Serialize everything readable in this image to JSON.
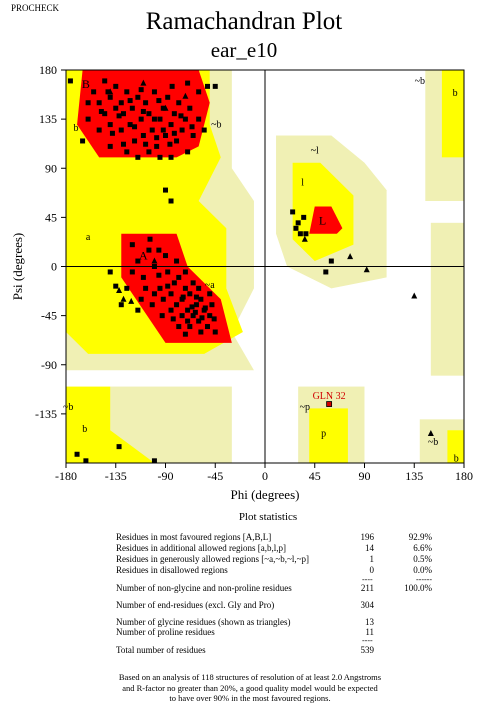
{
  "program": "PROCHECK",
  "title": "Ramachandran Plot",
  "subtitle": "ear_e10",
  "chart_data": {
    "type": "scatter",
    "xlabel": "Phi (degrees)",
    "ylabel": "Psi (degrees)",
    "xlim": [
      -180,
      180
    ],
    "ylim": [
      -180,
      180
    ],
    "xticks": [
      -180,
      -135,
      -90,
      -45,
      0,
      45,
      90,
      135,
      180
    ],
    "yticks": [
      180,
      135,
      90,
      45,
      0,
      -45,
      -90,
      -135
    ],
    "region_labels": [
      {
        "text": "B",
        "phi": -162,
        "psi": 167
      },
      {
        "text": "b",
        "phi": -171,
        "psi": 128
      },
      {
        "text": "~b",
        "phi": -44,
        "psi": 131
      },
      {
        "text": "~b",
        "phi": 140,
        "psi": 171
      },
      {
        "text": "b",
        "phi": 172,
        "psi": 160
      },
      {
        "text": "~l",
        "phi": 45,
        "psi": 107
      },
      {
        "text": "l",
        "phi": 34,
        "psi": 78
      },
      {
        "text": "L",
        "phi": 52,
        "psi": 42
      },
      {
        "text": "a",
        "phi": -160,
        "psi": 28
      },
      {
        "text": "A",
        "phi": -110,
        "psi": 10
      },
      {
        "text": "~a",
        "phi": -50,
        "psi": -16
      },
      {
        "text": "~b",
        "phi": -178,
        "psi": -128
      },
      {
        "text": "b",
        "phi": -163,
        "psi": -148
      },
      {
        "text": "~p",
        "phi": 36,
        "psi": -128
      },
      {
        "text": "p",
        "phi": 53,
        "psi": -152
      },
      {
        "text": "~b",
        "phi": 152,
        "psi": -160
      },
      {
        "text": "b",
        "phi": 173,
        "psi": -175
      }
    ],
    "labeled_residues": [
      {
        "name": "GLN 32",
        "phi": 58,
        "psi": -126
      }
    ],
    "squares": [
      [
        -155,
        160
      ],
      [
        -150,
        150
      ],
      [
        -145,
        170
      ],
      [
        -145,
        140
      ],
      [
        -140,
        155
      ],
      [
        -140,
        130
      ],
      [
        -135,
        165
      ],
      [
        -135,
        145
      ],
      [
        -130,
        150
      ],
      [
        -130,
        125
      ],
      [
        -128,
        140
      ],
      [
        -125,
        160
      ],
      [
        -122,
        130
      ],
      [
        -120,
        145
      ],
      [
        -118,
        115
      ],
      [
        -115,
        155
      ],
      [
        -112,
        135
      ],
      [
        -110,
        120
      ],
      [
        -108,
        150
      ],
      [
        -105,
        140
      ],
      [
        -102,
        125
      ],
      [
        -100,
        160
      ],
      [
        -98,
        110
      ],
      [
        -95,
        135
      ],
      [
        -92,
        145
      ],
      [
        -90,
        120
      ],
      [
        -88,
        155
      ],
      [
        -85,
        130
      ],
      [
        -82,
        140
      ],
      [
        -80,
        115
      ],
      [
        -78,
        150
      ],
      [
        -75,
        125
      ],
      [
        -72,
        135
      ],
      [
        -70,
        105
      ],
      [
        -68,
        145
      ],
      [
        -65,
        120
      ],
      [
        -60,
        135
      ],
      [
        -55,
        125
      ],
      [
        -140,
        110
      ],
      [
        -150,
        125
      ],
      [
        -125,
        105
      ],
      [
        -115,
        100
      ],
      [
        -105,
        105
      ],
      [
        -95,
        100
      ],
      [
        -85,
        100
      ],
      [
        -160,
        135
      ],
      [
        -138,
        122
      ],
      [
        -128,
        112
      ],
      [
        -118,
        128
      ],
      [
        -108,
        112
      ],
      [
        -100,
        135
      ],
      [
        -92,
        125
      ],
      [
        -86,
        112
      ],
      [
        -76,
        138
      ],
      [
        -66,
        128
      ],
      [
        -112,
        162
      ],
      [
        -96,
        152
      ],
      [
        -142,
        160
      ],
      [
        -132,
        138
      ],
      [
        -122,
        152
      ],
      [
        -148,
        142
      ],
      [
        -70,
        168
      ],
      [
        -60,
        160
      ],
      [
        -52,
        165
      ],
      [
        -84,
        165
      ],
      [
        -176,
        170
      ],
      [
        -165,
        115
      ],
      [
        -98,
        118
      ],
      [
        -110,
        142
      ],
      [
        -82,
        122
      ],
      [
        -160,
        150
      ],
      [
        -45,
        165
      ],
      [
        -120,
        20
      ],
      [
        -115,
        5
      ],
      [
        -110,
        -10
      ],
      [
        -105,
        15
      ],
      [
        -100,
        0
      ],
      [
        -95,
        -20
      ],
      [
        -90,
        10
      ],
      [
        -88,
        -5
      ],
      [
        -85,
        -25
      ],
      [
        -82,
        -15
      ],
      [
        -80,
        -35
      ],
      [
        -78,
        -10
      ],
      [
        -75,
        -30
      ],
      [
        -72,
        -20
      ],
      [
        -70,
        -40
      ],
      [
        -68,
        -25
      ],
      [
        -65,
        -45
      ],
      [
        -62,
        -35
      ],
      [
        -60,
        -50
      ],
      [
        -58,
        -30
      ],
      [
        -55,
        -40
      ],
      [
        -52,
        -55
      ],
      [
        -50,
        -45
      ],
      [
        -48,
        -35
      ],
      [
        -45,
        -60
      ],
      [
        -68,
        -55
      ],
      [
        -75,
        -45
      ],
      [
        -85,
        -40
      ],
      [
        -92,
        -30
      ],
      [
        -100,
        -25
      ],
      [
        -108,
        -20
      ],
      [
        -60,
        -20
      ],
      [
        -63,
        -42
      ],
      [
        -57,
        -47
      ],
      [
        -66,
        -37
      ],
      [
        -70,
        -50
      ],
      [
        -78,
        -55
      ],
      [
        -54,
        -38
      ],
      [
        -62,
        -28
      ],
      [
        -74,
        -28
      ],
      [
        -88,
        -18
      ],
      [
        -96,
        -8
      ],
      [
        -102,
        -35
      ],
      [
        -112,
        -30
      ],
      [
        -120,
        -5
      ],
      [
        -125,
        -20
      ],
      [
        -130,
        -35
      ],
      [
        -104,
        25
      ],
      [
        -96,
        15
      ],
      [
        -80,
        5
      ],
      [
        -72,
        -5
      ],
      [
        -65,
        -15
      ],
      [
        -58,
        -60
      ],
      [
        -83,
        -48
      ],
      [
        -93,
        -45
      ],
      [
        -72,
        -62
      ],
      [
        -115,
        -40
      ],
      [
        -50,
        -25
      ],
      [
        -46,
        -48
      ],
      [
        -140,
        -5
      ],
      [
        -135,
        -18
      ],
      [
        25,
        50
      ],
      [
        30,
        40
      ],
      [
        35,
        45
      ],
      [
        32,
        30
      ],
      [
        28,
        35
      ],
      [
        37,
        30
      ],
      [
        60,
        5
      ],
      [
        55,
        -5
      ],
      [
        -90,
        70
      ],
      [
        -85,
        60
      ],
      [
        -132,
        -165
      ],
      [
        -100,
        -178
      ],
      [
        -162,
        -178
      ],
      [
        -170,
        -172
      ]
    ],
    "triangles": [
      [
        -132,
        -22
      ],
      [
        -128,
        -30
      ],
      [
        -121,
        -32
      ],
      [
        36,
        25
      ],
      [
        77,
        9
      ],
      [
        92,
        -3
      ],
      [
        135,
        -27
      ],
      [
        150,
        -153
      ],
      [
        -72,
        156
      ],
      [
        -110,
        168
      ],
      [
        -90,
        145
      ],
      [
        -140,
        160
      ],
      [
        -100,
        5
      ]
    ],
    "statistics": {
      "heading": "Plot statistics",
      "rows": [
        {
          "label": "Residues in most favoured regions    [A,B,L]",
          "count": "196",
          "pct": "92.9%"
        },
        {
          "label": "Residues in additional allowed regions    [a,b,l,p]",
          "count": "14",
          "pct": "6.6%"
        },
        {
          "label": "Residues in generously allowed regions    [~a,~b,~l,~p]",
          "count": "1",
          "pct": "0.5%"
        },
        {
          "label": "Residues in disallowed regions",
          "count": "0",
          "pct": "0.0%"
        },
        {
          "label": "Number of non-glycine and non-proline residues",
          "count": "211",
          "pct": "100.0%"
        },
        {
          "label": "Number of end-residues (excl. Gly and Pro)",
          "count": "304",
          "pct": ""
        },
        {
          "label": "Number of glycine residues (shown as triangles)",
          "count": "13",
          "pct": ""
        },
        {
          "label": "Number of proline residues",
          "count": "11",
          "pct": ""
        },
        {
          "label": "Total number of residues",
          "count": "539",
          "pct": ""
        }
      ],
      "separator_short": "----",
      "separator_long": "------",
      "footnote": [
        "Based on an analysis of 118 structures of resolution of at least 2.0 Angstroms",
        "and R-factor no greater than 20%, a good quality model would be expected",
        "to have over 90% in the most favoured regions."
      ]
    }
  },
  "colors": {
    "core": "#ff0000",
    "allowed": "#ffff00",
    "generous": "#f0f0b4",
    "disallowed": "#ffffff",
    "labeled_residue": "#d00000"
  }
}
